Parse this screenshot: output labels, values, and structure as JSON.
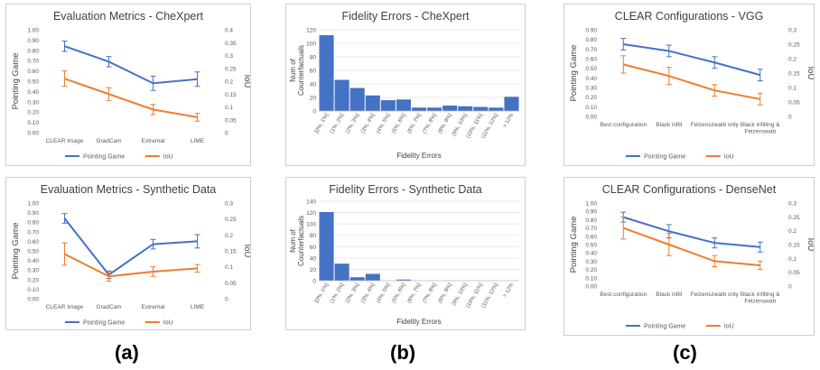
{
  "panel_labels": [
    "(a)",
    "(b)",
    "(c)"
  ],
  "chart_data": [
    {
      "id": "a1",
      "type": "line",
      "title": "Evaluation Metrics - CheXpert",
      "categories": [
        "CLEAR Image",
        "GradCam",
        "Extremal",
        "LIME"
      ],
      "series": [
        {
          "name": "Pointing Game",
          "axis": "left",
          "color": "#4472c4",
          "values": [
            0.84,
            0.69,
            0.48,
            0.52
          ],
          "errors": [
            0.05,
            0.05,
            0.07,
            0.07
          ]
        },
        {
          "name": "IoU",
          "axis": "right",
          "color": "#ed7d31",
          "values": [
            0.21,
            0.15,
            0.09,
            0.06
          ],
          "errors": [
            0.03,
            0.025,
            0.02,
            0.015
          ]
        }
      ],
      "ylabel": "Pointing Game",
      "ylabel_right": "IoU",
      "yticks": [
        "0.00",
        "0.10",
        "0.20",
        "0.30",
        "0.40",
        "0.50",
        "0.60",
        "0.70",
        "0.80",
        "0.90",
        "1.00"
      ],
      "yticks_right": [
        "0",
        "0.05",
        "0.1",
        "0.15",
        "0.2",
        "0.25",
        "0.3",
        "0.35",
        "0.4"
      ],
      "ylim": [
        0,
        1.0
      ],
      "ylim_right": [
        0,
        0.4
      ],
      "legend": "bottom"
    },
    {
      "id": "a2",
      "type": "line",
      "title": "Evaluation Metrics -  Synthetic Data",
      "categories": [
        "CLEAR Image",
        "GradCam",
        "Extremal",
        "LIME"
      ],
      "series": [
        {
          "name": "Pointing Game",
          "axis": "left",
          "color": "#4472c4",
          "values": [
            0.84,
            0.25,
            0.57,
            0.6
          ],
          "errors": [
            0.05,
            0.04,
            0.05,
            0.07
          ]
        },
        {
          "name": "IoU",
          "axis": "right",
          "color": "#ed7d31",
          "values": [
            0.14,
            0.07,
            0.085,
            0.095
          ],
          "errors": [
            0.035,
            0.015,
            0.015,
            0.012
          ]
        }
      ],
      "ylabel": "Pointing Game",
      "ylabel_right": "IoU",
      "yticks": [
        "0.00",
        "0.10",
        "0.20",
        "0.30",
        "0.40",
        "0.50",
        "0.60",
        "0.70",
        "0.80",
        "0.90",
        "1.00"
      ],
      "yticks_right": [
        "0",
        "0.05",
        "0.1",
        "0.15",
        "0.2",
        "0.25",
        "0.3"
      ],
      "ylim": [
        0,
        1.0
      ],
      "ylim_right": [
        0,
        0.3
      ],
      "legend": "bottom"
    },
    {
      "id": "b1",
      "type": "bar",
      "title": "Fidelity Errors - CheXpert",
      "categories": [
        "[0%, 1%]",
        "(1%, 2%]",
        "(2%, 3%]",
        "(3%, 4%]",
        "(4%, 5%]",
        "(5%, 6%]",
        "(6%, 7%]",
        "(7%, 8%]",
        "(8%, 9%]",
        "(9%, 10%]",
        "(10%, 11%]",
        "(11%, 12%]",
        "> 12%"
      ],
      "values": [
        112,
        46,
        34,
        23,
        16,
        17,
        5,
        5,
        8,
        7,
        6,
        5,
        21
      ],
      "color": "#4472c4",
      "ylabel": "Num of Counterfactuals",
      "xlabel": "Fidelity Errors",
      "yticks": [
        "0",
        "20",
        "40",
        "60",
        "80",
        "100",
        "120"
      ],
      "ylim": [
        0,
        120
      ]
    },
    {
      "id": "b2",
      "type": "bar",
      "title": "Fidelity Errors - Synthetic Data",
      "categories": [
        "[0%, 1%]",
        "(1%, 2%]",
        "(2%, 3%]",
        "(3%, 4%]",
        "(4%, 5%]",
        "(5%, 6%]",
        "(6%, 7%]",
        "(7%, 8%]",
        "(8%, 9%]",
        "(9%, 10%]",
        "(10%, 11%]",
        "(11%, 12%]",
        "> 12%"
      ],
      "values": [
        121,
        30,
        6,
        12,
        0,
        2,
        0,
        0,
        0,
        0,
        0,
        0,
        0
      ],
      "color": "#4472c4",
      "ylabel": "Num of Counterfactuals",
      "xlabel": "Fidelity Errors",
      "yticks": [
        "0",
        "20",
        "40",
        "60",
        "80",
        "100",
        "120",
        "140"
      ],
      "ylim": [
        0,
        140
      ]
    },
    {
      "id": "c1",
      "type": "line",
      "title": "CLEAR Configurations - VGG",
      "categories": [
        "Best configuration",
        "Black infill",
        "Felzenszwalb only",
        "Black infilling & Felzenswab"
      ],
      "series": [
        {
          "name": "Pointing Game",
          "axis": "left",
          "color": "#4472c4",
          "values": [
            0.75,
            0.68,
            0.56,
            0.43
          ],
          "errors": [
            0.06,
            0.06,
            0.06,
            0.06
          ]
        },
        {
          "name": "IoU",
          "axis": "right",
          "color": "#ed7d31",
          "values": [
            0.18,
            0.14,
            0.09,
            0.06
          ],
          "errors": [
            0.03,
            0.03,
            0.02,
            0.02
          ]
        }
      ],
      "ylabel": "Pointing Game",
      "ylabel_right": "IoU",
      "yticks": [
        "0.00",
        "0.10",
        "0.20",
        "0.30",
        "0.40",
        "0.50",
        "0.60",
        "0.70",
        "0.80",
        "0.90"
      ],
      "yticks_right": [
        "0",
        "0.05",
        "0.1",
        "0.15",
        "0.2",
        "0.25",
        "0.3"
      ],
      "ylim": [
        0,
        0.9
      ],
      "ylim_right": [
        0,
        0.3
      ],
      "legend": "bottom"
    },
    {
      "id": "c2",
      "type": "line",
      "title": "CLEAR Configurations - DenseNet",
      "categories": [
        "Best configuration",
        "Black infill",
        "Felzenszwalb only",
        "Black infilling & Felzenswab"
      ],
      "series": [
        {
          "name": "Pointing Game",
          "axis": "left",
          "color": "#4472c4",
          "values": [
            0.83,
            0.66,
            0.52,
            0.47
          ],
          "errors": [
            0.06,
            0.08,
            0.06,
            0.06
          ]
        },
        {
          "name": "IoU",
          "axis": "right",
          "color": "#ed7d31",
          "values": [
            0.21,
            0.15,
            0.09,
            0.075
          ],
          "errors": [
            0.04,
            0.04,
            0.02,
            0.015
          ]
        }
      ],
      "ylabel": "Pointing Game",
      "ylabel_right": "IoU",
      "yticks": [
        "0.00",
        "0.10",
        "0.20",
        "0.30",
        "0.40",
        "0.50",
        "0.60",
        "0.70",
        "0.80",
        "0.90",
        "1.00"
      ],
      "yticks_right": [
        "0",
        "0.05",
        "0.1",
        "0.15",
        "0.2",
        "0.25",
        "0.3"
      ],
      "ylim": [
        0,
        1.0
      ],
      "ylim_right": [
        0,
        0.3
      ],
      "legend": "bottom"
    }
  ]
}
